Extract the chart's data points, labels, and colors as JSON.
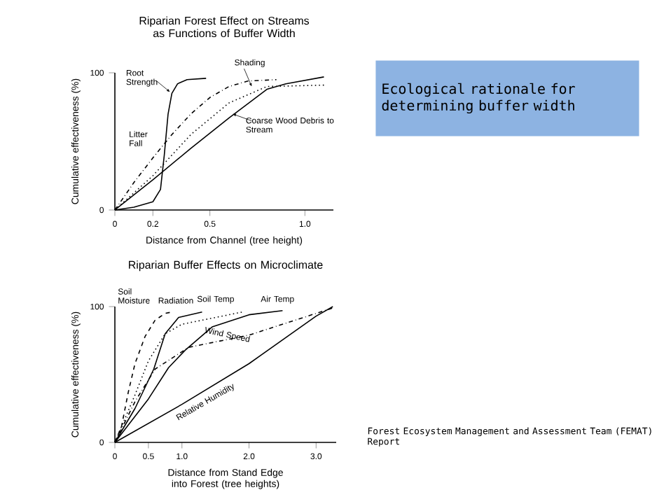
{
  "chart_data": [
    {
      "type": "line",
      "title": "Riparian Forest Effect on Streams as Functions of Buffer Width",
      "xlabel": "Distance from Channel (tree height)",
      "ylabel": "Cumulative effectiveness (%)",
      "xlim": [
        0,
        1.15
      ],
      "xticks": [
        0,
        0.2,
        0.5,
        {
          "value": 1,
          "label": "1.0"
        }
      ],
      "ylim": [
        0,
        100
      ],
      "yticks": [
        0,
        100
      ],
      "series": [
        {
          "name": "Root Strength",
          "color": "#000000",
          "line_style": "solid",
          "x": [
            0,
            0.1,
            0.2,
            0.24,
            0.26,
            0.28,
            0.3,
            0.33,
            0.38,
            0.48
          ],
          "values": [
            0,
            2,
            6,
            15,
            40,
            70,
            85,
            92,
            95,
            96
          ]
        },
        {
          "name": "Litter Fall",
          "color": "#000000",
          "line_style": "dashdot",
          "x": [
            0,
            0.1,
            0.2,
            0.3,
            0.4,
            0.5,
            0.6,
            0.7,
            0.85
          ],
          "values": [
            0,
            20,
            38,
            55,
            70,
            82,
            90,
            94,
            95
          ]
        },
        {
          "name": "Shading",
          "color": "#000000",
          "line_style": "dotted",
          "x": [
            0,
            0.2,
            0.4,
            0.6,
            0.8,
            1.1
          ],
          "values": [
            0,
            25,
            55,
            78,
            90,
            91
          ]
        },
        {
          "name": "Coarse Wood Debris to Stream",
          "color": "#000000",
          "line_style": "solid",
          "x": [
            0,
            0.2,
            0.4,
            0.6,
            0.8,
            0.9,
            1.1
          ],
          "values": [
            0,
            22,
            45,
            67,
            88,
            92,
            97
          ]
        }
      ]
    },
    {
      "type": "other",
      "title": "Ecological rationale for determining buffer width",
      "annotations": [
        "Forest Ecosystem Management and Assessment Team (FEMAT) Report"
      ]
    },
    {
      "type": "line",
      "title": "Riparian Buffer Effects on Microclimate",
      "xlabel": "Distance from Stand Edge into Forest (tree heights)",
      "ylabel": "Cumulative effectiveness (%)",
      "xlim": [
        0,
        3.3
      ],
      "xticks": [
        0,
        0.5,
        {
          "value": 1,
          "label": "1.0"
        },
        {
          "value": 2,
          "label": "2.0"
        },
        {
          "value": 3,
          "label": "3.0"
        }
      ],
      "ylim": [
        0,
        100
      ],
      "yticks": [
        0,
        100
      ],
      "series": [
        {
          "name": "Soil Moisture",
          "color": "#000000",
          "line_style": "dashed",
          "x": [
            0,
            0.1,
            0.2,
            0.3,
            0.45,
            0.6,
            0.75,
            0.85
          ],
          "values": [
            0,
            12,
            37,
            58,
            78,
            90,
            95,
            96
          ]
        },
        {
          "name": "Radiation",
          "color": "#000000",
          "line_style": "solid",
          "x": [
            0,
            0.3,
            0.58,
            0.75,
            0.95,
            1.3
          ],
          "values": [
            0,
            25,
            54,
            80,
            92,
            96
          ]
        },
        {
          "name": "Soil Temp",
          "color": "#000000",
          "line_style": "dotted",
          "x": [
            0,
            0.3,
            0.5,
            0.75,
            1.0,
            1.5,
            1.9
          ],
          "values": [
            0,
            35,
            60,
            80,
            87,
            92,
            96
          ]
        },
        {
          "name": "Air Temp",
          "color": "#000000",
          "line_style": "solid",
          "x": [
            0,
            0.5,
            0.8,
            1.05,
            1.45,
            2.0,
            2.5
          ],
          "values": [
            0,
            32,
            55,
            68,
            85,
            94,
            97
          ]
        },
        {
          "name": "Wind Speed",
          "color": "#000000",
          "line_style": "dashdot",
          "x": [
            0,
            0.3,
            0.6,
            1.1,
            2.0,
            3.0,
            3.25
          ],
          "values": [
            0,
            30,
            54,
            70,
            79,
            95,
            99
          ]
        },
        {
          "name": "Relative Humidity",
          "color": "#000000",
          "line_style": "solid",
          "x": [
            0,
            1.0,
            2.0,
            3.0,
            3.25
          ],
          "values": [
            0,
            28,
            58,
            93,
            100
          ]
        }
      ]
    }
  ]
}
